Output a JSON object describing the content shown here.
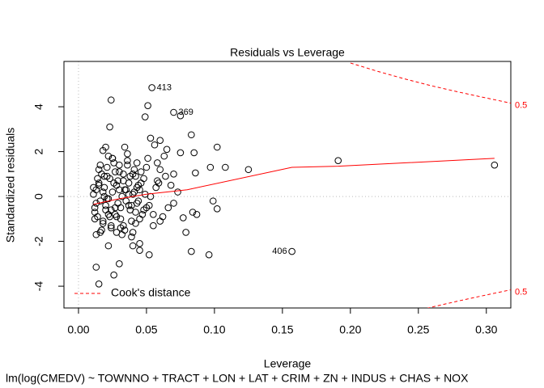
{
  "chart_data": {
    "type": "scatter",
    "title": "Residuals vs Leverage",
    "x_label": "Leverage",
    "y_label": "Standardized residuals",
    "subtitle": "lm(log(CMEDV) ~ TOWNNO + TRACT + LON + LAT + CRIM + ZN + INDUS + CHAS + NOX",
    "xlim": [
      -0.0107,
      0.318
    ],
    "ylim": [
      -4.97,
      6.02
    ],
    "xticks": [
      {
        "value": 0,
        "label": "0.00"
      },
      {
        "value": 0.05,
        "label": "0.05"
      },
      {
        "value": 0.1,
        "label": "0.10"
      },
      {
        "value": 0.15,
        "label": "0.15"
      },
      {
        "value": 0.2,
        "label": "0.20"
      },
      {
        "value": 0.25,
        "label": "0.25"
      },
      {
        "value": 0.3,
        "label": "0.30"
      }
    ],
    "yticks": [
      -4,
      -2,
      0,
      2,
      4
    ],
    "point_color": "#000000",
    "x": [
      0.024,
      0.023,
      0.051,
      0.049,
      0.053,
      0.06,
      0.083,
      0.102,
      0.02,
      0.018,
      0.065,
      0.07,
      0.075,
      0.085,
      0.086,
      0.097,
      0.108,
      0.125,
      0.191,
      0.306,
      0.099,
      0.102,
      0.084,
      0.087,
      0.077,
      0.079,
      0.083,
      0.096,
      0.052,
      0.045,
      0.045,
      0.04,
      0.022,
      0.03,
      0.013,
      0.026,
      0.015,
      0.06,
      0.055,
      0.062,
      0.066,
      0.07,
      0.073,
      0.068,
      0.064,
      0.058,
      0.063,
      0.056,
      0.06,
      0.054,
      0.07,
      0.075,
      0.157,
      0.011,
      0.012,
      0.013,
      0.014,
      0.015,
      0.016,
      0.017,
      0.018,
      0.019,
      0.02,
      0.021,
      0.022,
      0.023,
      0.024,
      0.025,
      0.026,
      0.027,
      0.028,
      0.029,
      0.03,
      0.031,
      0.032,
      0.033,
      0.034,
      0.035,
      0.036,
      0.037,
      0.038,
      0.039,
      0.04,
      0.041,
      0.042,
      0.043,
      0.044,
      0.046,
      0.048,
      0.05,
      0.012,
      0.014,
      0.016,
      0.018,
      0.02,
      0.022,
      0.024,
      0.026,
      0.028,
      0.03,
      0.032,
      0.034,
      0.036,
      0.038,
      0.04,
      0.042,
      0.044,
      0.047,
      0.05,
      0.053,
      0.011,
      0.013,
      0.015,
      0.017,
      0.019,
      0.021,
      0.023,
      0.025,
      0.027,
      0.029,
      0.031,
      0.033,
      0.035,
      0.037,
      0.039,
      0.041,
      0.043,
      0.045,
      0.049,
      0.057,
      0.012,
      0.015,
      0.018,
      0.021,
      0.024,
      0.027,
      0.03,
      0.033,
      0.036,
      0.039,
      0.042,
      0.045,
      0.048,
      0.051,
      0.055,
      0.059,
      0.013,
      0.016,
      0.019,
      0.022,
      0.025,
      0.028,
      0.031,
      0.034,
      0.037,
      0.04,
      0.043,
      0.046,
      0.052,
      0.058
    ],
    "values": [
      4.3,
      3.1,
      4.05,
      3.55,
      2.6,
      2.5,
      2.75,
      2.2,
      2.2,
      2.05,
      2.1,
      1.0,
      1.95,
      1.95,
      1.05,
      1.3,
      1.3,
      1.2,
      1.6,
      1.4,
      -0.2,
      -0.55,
      -0.7,
      -0.8,
      -0.95,
      -1.6,
      -2.45,
      -2.6,
      -2.6,
      -2.1,
      -2.4,
      -2.2,
      -2.2,
      -3.0,
      -3.15,
      -3.5,
      -3.9,
      -1.1,
      -1.3,
      -0.9,
      -0.5,
      -0.3,
      0.2,
      0.5,
      0.9,
      1.5,
      1.8,
      2.3,
      1.2,
      4.85,
      3.75,
      3.6,
      -2.45,
      0.1,
      -0.5,
      0.3,
      -0.9,
      0.6,
      -0.2,
      1.0,
      -1.2,
      0.4,
      -0.6,
      1.3,
      -0.1,
      0.8,
      -1.4,
      0.2,
      1.5,
      -0.8,
      0.5,
      -0.3,
      1.1,
      -1.0,
      0.0,
      0.7,
      -1.5,
      0.3,
      1.6,
      -0.4,
      0.9,
      -1.1,
      0.1,
      1.2,
      -0.7,
      0.4,
      -0.2,
      0.6,
      0.8,
      -0.5,
      -1.0,
      0.8,
      -1.6,
      0.2,
      -0.4,
      1.8,
      -1.3,
      0.6,
      -0.9,
      1.4,
      -1.7,
      0.3,
      1.9,
      -0.6,
      1.0,
      -1.2,
      0.5,
      -0.8,
      1.3,
      0.0,
      0.4,
      -0.3,
      1.2,
      -1.5,
      0.9,
      -0.1,
      -0.9,
      1.7,
      -0.5,
      0.7,
      -1.4,
      1.0,
      -0.2,
      0.6,
      -1.8,
      0.2,
      1.5,
      -1.0,
      0.1,
      0.4,
      -0.7,
      0.5,
      -1.1,
      0.9,
      -0.6,
      1.1,
      0.3,
      -1.3,
      1.4,
      -0.4,
      0.9,
      0.3,
      -0.6,
      1.7,
      -0.8,
      0.6,
      -1.7,
      1.4,
      0.0,
      -0.8,
      1.7,
      -1.6,
      -0.5,
      2.2,
      0.1,
      -1.6,
      -0.3,
      1.1,
      -0.4,
      0.7
    ],
    "annotations": [
      {
        "text": "413",
        "x": 0.054,
        "y": 4.85
      },
      {
        "text": "369",
        "x": 0.07,
        "y": 3.75
      },
      {
        "text": "406",
        "x": 0.157,
        "y": -2.45
      }
    ],
    "smooth": {
      "color": "#ff0000",
      "x": [
        0.011,
        0.03,
        0.05,
        0.08,
        0.157,
        0.191,
        0.306
      ],
      "y": [
        -0.35,
        -0.1,
        0.1,
        0.3,
        1.3,
        1.35,
        1.7
      ]
    },
    "cooks": {
      "name": "Cook's distance",
      "level": "0.5",
      "color": "#ff0000",
      "x": [
        0.2,
        0.22,
        0.24,
        0.26,
        0.28,
        0.3,
        0.318
      ],
      "y_upper": [
        5.95,
        5.58,
        5.24,
        4.93,
        4.65,
        4.39,
        4.16
      ],
      "y_lower": [
        -5.95,
        -5.58,
        -5.24,
        -4.93,
        -4.65,
        -4.39,
        -4.16
      ]
    }
  }
}
